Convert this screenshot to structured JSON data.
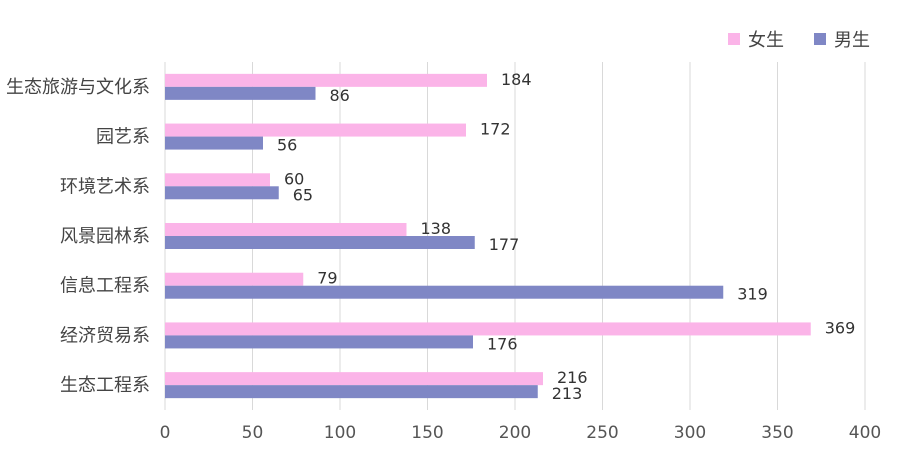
{
  "chart_data": {
    "type": "bar",
    "orientation": "horizontal",
    "categories": [
      "生态旅游与文化系",
      "园艺系",
      "环境艺术系",
      "风景园林系",
      "信息工程系",
      "经济贸易系",
      "生态工程系"
    ],
    "series": [
      {
        "name": "女生",
        "color": "#FBB4E8",
        "values": [
          184,
          172,
          60,
          138,
          79,
          369,
          216
        ]
      },
      {
        "name": "男生",
        "color": "#7F87C5",
        "values": [
          86,
          56,
          65,
          177,
          319,
          176,
          213
        ]
      }
    ],
    "xlim": [
      0,
      400
    ],
    "xticks": [
      "0",
      "50",
      "100",
      "150",
      "200",
      "250",
      "300",
      "350",
      "400"
    ],
    "grid": true,
    "legend_position": "top-right"
  }
}
